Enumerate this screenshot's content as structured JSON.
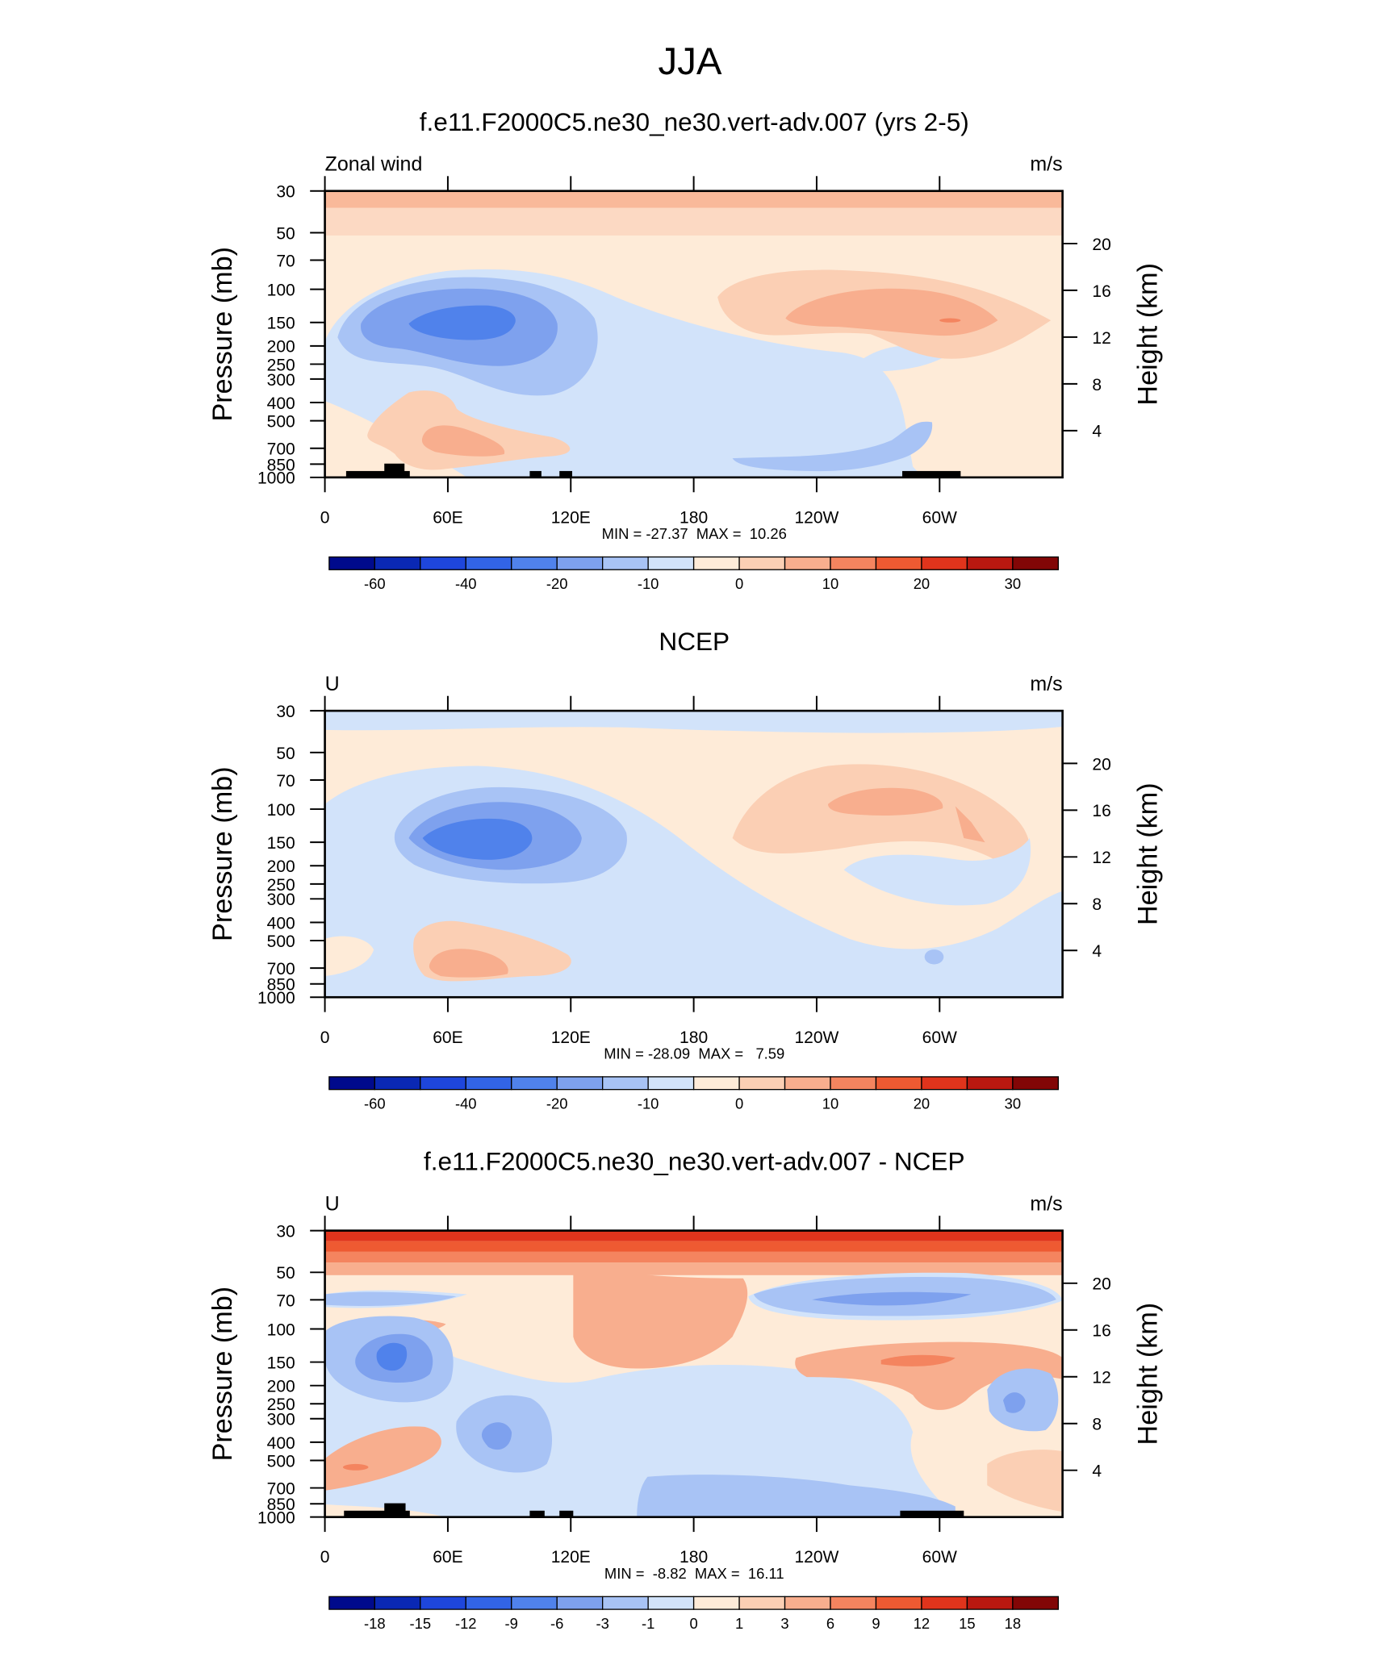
{
  "title": "JJA",
  "chart_data": [
    {
      "type": "contour",
      "title": "f.e11.F2000C5.ne30_ne30.vert-adv.007 (yrs 2-5)",
      "left_string": "Zonal wind",
      "right_string": "m/s",
      "y_label": "Pressure (mb)",
      "y2_label": "Height (km)",
      "stats": "MIN = -27.37  MAX =  10.26",
      "xlim": [
        0,
        360
      ],
      "xticks": [
        0,
        {
          "value": 60,
          "label": "60E"
        },
        {
          "value": 120,
          "label": "120E"
        },
        180,
        {
          "value": 240,
          "label": "120W"
        },
        {
          "value": 300,
          "label": "60W"
        }
      ],
      "ylim": [
        1000,
        30
      ],
      "yscale": "log",
      "yticks": [
        30,
        50,
        70,
        100,
        150,
        200,
        250,
        300,
        400,
        500,
        700,
        850,
        1000
      ],
      "y2lim": [
        0,
        24.5
      ],
      "y2ticks": [
        4,
        8,
        12,
        16,
        20
      ],
      "colorbar": {
        "colors": [
          "#000a8c",
          "#0a28b4",
          "#1e46dc",
          "#3264e6",
          "#5082eb",
          "#7ea1ee",
          "#a8c3f5",
          "#d2e3fa",
          "#feebd8",
          "#fbcfb4",
          "#f8ae8e",
          "#f4845f",
          "#ee5a32",
          "#e0341c",
          "#b91810",
          "#820606"
        ],
        "labels": [
          -60,
          -40,
          -20,
          -10,
          0,
          10,
          20,
          30
        ]
      }
    },
    {
      "type": "contour",
      "title": "NCEP",
      "left_string": "U",
      "right_string": "m/s",
      "y_label": "Pressure (mb)",
      "y2_label": "Height (km)",
      "stats": "MIN = -28.09  MAX =   7.59",
      "xlim": [
        0,
        360
      ],
      "xticks": [
        0,
        {
          "value": 60,
          "label": "60E"
        },
        {
          "value": 120,
          "label": "120E"
        },
        180,
        {
          "value": 240,
          "label": "120W"
        },
        {
          "value": 300,
          "label": "60W"
        }
      ],
      "ylim": [
        1000,
        30
      ],
      "yscale": "log",
      "yticks": [
        30,
        50,
        70,
        100,
        150,
        200,
        250,
        300,
        400,
        500,
        700,
        850,
        1000
      ],
      "y2lim": [
        0,
        24.5
      ],
      "y2ticks": [
        4,
        8,
        12,
        16,
        20
      ],
      "colorbar": {
        "colors": [
          "#000a8c",
          "#0a28b4",
          "#1e46dc",
          "#3264e6",
          "#5082eb",
          "#7ea1ee",
          "#a8c3f5",
          "#d2e3fa",
          "#feebd8",
          "#fbcfb4",
          "#f8ae8e",
          "#f4845f",
          "#ee5a32",
          "#e0341c",
          "#b91810",
          "#820606"
        ],
        "labels": [
          -60,
          -40,
          -20,
          -10,
          0,
          10,
          20,
          30
        ]
      }
    },
    {
      "type": "contour",
      "title": "f.e11.F2000C5.ne30_ne30.vert-adv.007 - NCEP",
      "left_string": "U",
      "right_string": "m/s",
      "y_label": "Pressure (mb)",
      "y2_label": "Height (km)",
      "stats": "MIN =  -8.82  MAX =  16.11",
      "xlim": [
        0,
        360
      ],
      "xticks": [
        0,
        {
          "value": 60,
          "label": "60E"
        },
        {
          "value": 120,
          "label": "120E"
        },
        180,
        {
          "value": 240,
          "label": "120W"
        },
        {
          "value": 300,
          "label": "60W"
        }
      ],
      "ylim": [
        1000,
        30
      ],
      "yscale": "log",
      "yticks": [
        30,
        50,
        70,
        100,
        150,
        200,
        250,
        300,
        400,
        500,
        700,
        850,
        1000
      ],
      "y2lim": [
        0,
        24.5
      ],
      "y2ticks": [
        4,
        8,
        12,
        16,
        20
      ],
      "colorbar": {
        "colors": [
          "#000a8c",
          "#0a28b4",
          "#1e46dc",
          "#3264e6",
          "#5082eb",
          "#7ea1ee",
          "#a8c3f5",
          "#d2e3fa",
          "#feebd8",
          "#fbcfb4",
          "#f8ae8e",
          "#f4845f",
          "#ee5a32",
          "#e0341c",
          "#b91810",
          "#820606"
        ],
        "labels": [
          -18,
          -15,
          -12,
          -9,
          -6,
          -3,
          -1,
          0,
          1,
          3,
          6,
          9,
          12,
          15,
          18
        ]
      }
    }
  ]
}
